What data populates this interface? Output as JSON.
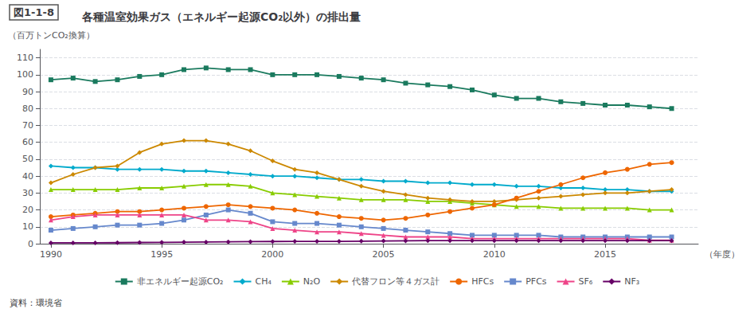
{
  "chart_data": {
    "type": "line",
    "title": "各種温室効果ガス（エネルギー起源CO₂以外）の排出量",
    "annotations": [
      "図1-1-8",
      "資料：環境省"
    ],
    "xlabel": "（年度）",
    "ylabel": "（百万トンCO₂換算）",
    "x": [
      1990,
      1991,
      1992,
      1993,
      1994,
      1995,
      1996,
      1997,
      1998,
      1999,
      2000,
      2001,
      2002,
      2003,
      2004,
      2005,
      2006,
      2007,
      2008,
      2009,
      2010,
      2011,
      2012,
      2013,
      2014,
      2015,
      2016,
      2017,
      2018
    ],
    "xlim": [
      1989.5,
      2019.2
    ],
    "xticks": [
      1990,
      1995,
      2000,
      2005,
      2010,
      2015
    ],
    "ylim": [
      0,
      115
    ],
    "yticks": [
      0,
      10,
      20,
      30,
      40,
      50,
      60,
      70,
      80,
      90,
      100,
      110
    ],
    "grid": true,
    "legend": "bottom",
    "series": [
      {
        "name": "非エネルギー起源CO₂",
        "color": "#1a7a5e",
        "marker": "square",
        "values": [
          97,
          98,
          96,
          97,
          99,
          100,
          103,
          104,
          103,
          103,
          100,
          100,
          100,
          99,
          98,
          97,
          95,
          94,
          93,
          91,
          88,
          86,
          86,
          84,
          83,
          82,
          82,
          81,
          80
        ]
      },
      {
        "name": "CH₄",
        "color": "#00aacc",
        "marker": "diamond",
        "values": [
          46,
          45,
          45,
          44,
          44,
          44,
          43,
          43,
          42,
          41,
          40,
          40,
          39,
          38,
          38,
          37,
          37,
          36,
          36,
          35,
          35,
          34,
          34,
          33,
          33,
          32,
          32,
          31,
          31
        ]
      },
      {
        "name": "N₂O",
        "color": "#88cc00",
        "marker": "triangle",
        "values": [
          32,
          32,
          32,
          32,
          33,
          33,
          34,
          35,
          35,
          34,
          30,
          29,
          28,
          27,
          26,
          26,
          26,
          25,
          25,
          24,
          23,
          22,
          22,
          21,
          21,
          21,
          21,
          20,
          20
        ]
      },
      {
        "name": "代替フロン等４ガス計",
        "color": "#cc8800",
        "marker": "diamond",
        "values": [
          36,
          41,
          45,
          46,
          54,
          59,
          61,
          61,
          59,
          55,
          49,
          44,
          42,
          38,
          34,
          31,
          29,
          27,
          26,
          25,
          25,
          26,
          27,
          28,
          29,
          30,
          30,
          31,
          32
        ]
      },
      {
        "name": "HFCs",
        "color": "#ee6600",
        "marker": "circle",
        "values": [
          16,
          17,
          18,
          19,
          19,
          20,
          21,
          22,
          23,
          22,
          21,
          20,
          18,
          16,
          15,
          14,
          15,
          17,
          19,
          21,
          23,
          27,
          31,
          35,
          39,
          42,
          44,
          47,
          48
        ]
      },
      {
        "name": "PFCs",
        "color": "#6688cc",
        "marker": "square",
        "values": [
          8,
          9,
          10,
          11,
          11,
          12,
          14,
          17,
          20,
          18,
          13,
          12,
          12,
          11,
          10,
          9,
          8,
          7,
          6,
          5,
          5,
          5,
          5,
          4,
          4,
          4,
          4,
          4,
          4
        ]
      },
      {
        "name": "SF₆",
        "color": "#ee4488",
        "marker": "triangle",
        "values": [
          14,
          16,
          17,
          17,
          17,
          17,
          17,
          14,
          14,
          13,
          9,
          8,
          7,
          7,
          6,
          5,
          4,
          4,
          4,
          3,
          3,
          3,
          3,
          3,
          3,
          3,
          3,
          2,
          2
        ]
      },
      {
        "name": "NF₃",
        "color": "#660066",
        "marker": "diamond",
        "values": [
          0.5,
          0.5,
          0.5,
          0.6,
          0.7,
          0.8,
          0.9,
          1.0,
          1.1,
          1.2,
          1.3,
          1.4,
          1.4,
          1.4,
          1.5,
          1.6,
          1.7,
          1.8,
          1.8,
          1.8,
          1.8,
          1.8,
          1.8,
          1.8,
          1.8,
          1.8,
          1.8,
          1.8,
          1.8
        ]
      }
    ]
  }
}
